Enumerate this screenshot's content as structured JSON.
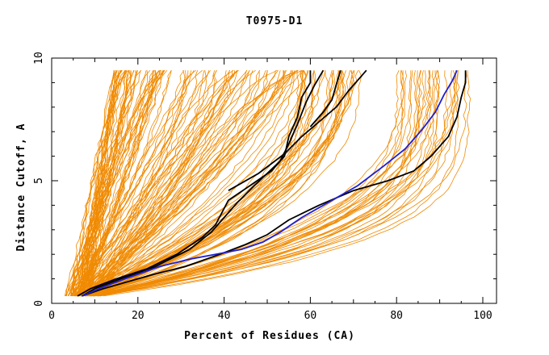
{
  "chart_data": {
    "type": "line",
    "title": "T0975-D1",
    "xlabel": "Percent of Residues (CA)",
    "ylabel": "Distance Cutoff, A",
    "xlim": [
      0,
      100
    ],
    "ylim": [
      0,
      10
    ],
    "x_ticks": [
      "0",
      "20",
      "40",
      "60",
      "80",
      "100"
    ],
    "y_ticks": [
      "0",
      "5",
      "10"
    ],
    "grid": false,
    "legend": "none",
    "colors": {
      "orange": "#f08a00",
      "black": "#000000",
      "blue": "#1f1fd0",
      "axis": "#000000"
    },
    "highlighted_series": [
      {
        "color": "black",
        "points": [
          [
            7,
            0.3
          ],
          [
            10,
            0.6
          ],
          [
            16,
            1.0
          ],
          [
            24,
            1.5
          ],
          [
            32,
            2.2
          ],
          [
            37,
            2.9
          ],
          [
            40,
            3.5
          ],
          [
            43,
            4.1
          ],
          [
            47,
            4.8
          ],
          [
            50,
            5.3
          ],
          [
            53,
            5.8
          ],
          [
            55,
            6.5
          ],
          [
            57,
            7.3
          ],
          [
            59,
            8.2
          ],
          [
            61,
            8.9
          ],
          [
            63,
            9.5
          ]
        ]
      },
      {
        "color": "black",
        "points": [
          [
            6,
            0.3
          ],
          [
            9,
            0.6
          ],
          [
            15,
            1.0
          ],
          [
            22,
            1.4
          ],
          [
            29,
            2.0
          ],
          [
            35,
            2.7
          ],
          [
            38,
            3.2
          ],
          [
            41,
            4.2
          ],
          [
            46,
            4.8
          ],
          [
            51,
            5.4
          ],
          [
            54,
            6.0
          ],
          [
            55,
            6.8
          ],
          [
            57,
            7.6
          ],
          [
            58,
            8.4
          ],
          [
            60,
            9.0
          ],
          [
            60,
            9.5
          ]
        ]
      },
      {
        "color": "black",
        "points": [
          [
            7,
            0.3
          ],
          [
            12,
            0.6
          ],
          [
            18,
            0.9
          ],
          [
            24,
            1.2
          ],
          [
            31,
            1.5
          ],
          [
            39,
            2.0
          ],
          [
            45,
            2.4
          ],
          [
            50,
            2.8
          ],
          [
            55,
            3.4
          ],
          [
            62,
            4.0
          ],
          [
            70,
            4.6
          ],
          [
            78,
            5.0
          ],
          [
            84,
            5.4
          ],
          [
            88,
            6.0
          ],
          [
            92,
            6.8
          ],
          [
            94,
            7.6
          ],
          [
            95,
            8.4
          ],
          [
            96,
            9.0
          ],
          [
            96,
            9.5
          ]
        ]
      },
      {
        "color": "black",
        "points": [
          [
            41,
            4.6
          ],
          [
            48,
            5.3
          ],
          [
            54,
            6.1
          ],
          [
            58,
            6.8
          ],
          [
            62,
            7.4
          ],
          [
            66,
            8.0
          ],
          [
            69,
            8.7
          ],
          [
            72,
            9.3
          ],
          [
            73,
            9.5
          ]
        ]
      },
      {
        "color": "black",
        "points": [
          [
            60,
            7.2
          ],
          [
            63,
            7.8
          ],
          [
            65,
            8.3
          ],
          [
            66,
            8.9
          ],
          [
            67,
            9.5
          ]
        ]
      },
      {
        "color": "blue",
        "points": [
          [
            7,
            0.3
          ],
          [
            11,
            0.6
          ],
          [
            17,
            1.0
          ],
          [
            25,
            1.5
          ],
          [
            32,
            1.8
          ],
          [
            38,
            2.0
          ],
          [
            44,
            2.2
          ],
          [
            49,
            2.5
          ],
          [
            53,
            2.9
          ],
          [
            58,
            3.5
          ],
          [
            64,
            4.1
          ],
          [
            71,
            4.8
          ],
          [
            77,
            5.6
          ],
          [
            82,
            6.3
          ],
          [
            86,
            7.1
          ],
          [
            89,
            7.8
          ],
          [
            91,
            8.5
          ],
          [
            93,
            9.1
          ],
          [
            94,
            9.5
          ]
        ]
      }
    ]
  }
}
